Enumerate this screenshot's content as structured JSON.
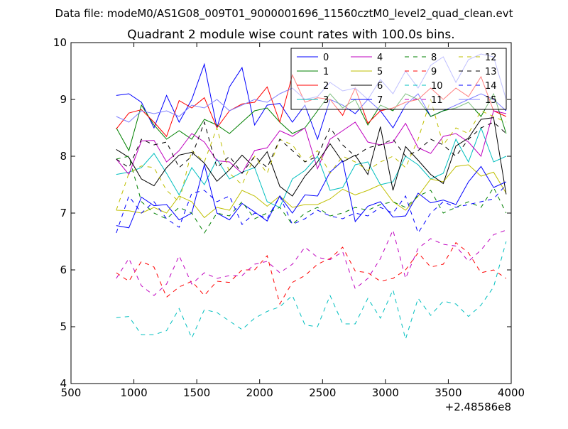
{
  "suptitle": "Data file: modeM0/AS1G08_009T01_9000001696_11560cztM0_level2_quad_clean.evt",
  "chart_data": {
    "type": "line",
    "title": "Quadrant 2 module wise count rates with 100.0s bins.",
    "xlabel": "",
    "ylabel": "",
    "xlim": [
      500,
      4000
    ],
    "ylim": [
      4,
      10
    ],
    "x_offset_label": "+2.48586e8",
    "x_ticks": [
      500,
      1000,
      1500,
      2000,
      2500,
      3000,
      3500,
      4000
    ],
    "y_ticks": [
      4,
      5,
      6,
      7,
      8,
      9,
      10
    ],
    "grid": false,
    "legend_position": "top-right",
    "x": [
      860,
      960,
      1060,
      1160,
      1260,
      1360,
      1460,
      1560,
      1660,
      1760,
      1860,
      1960,
      2060,
      2160,
      2260,
      2360,
      2460,
      2560,
      2660,
      2760,
      2860,
      2960,
      3060,
      3160,
      3260,
      3360,
      3460,
      3560,
      3660,
      3760,
      3860,
      3960
    ],
    "series": [
      {
        "name": "0",
        "color": "#0000ff",
        "dash": "solid",
        "values": [
          9.07,
          9.1,
          8.95,
          8.5,
          9.07,
          8.6,
          9.0,
          9.62,
          8.5,
          9.22,
          9.56,
          8.55,
          8.9,
          8.93,
          8.6,
          8.9,
          8.3,
          9.0,
          8.9,
          8.75,
          9.0,
          8.8,
          8.5,
          8.9,
          9.1,
          8.7,
          8.8,
          8.9,
          9.0,
          9.1,
          9.0,
          8.8
        ]
      },
      {
        "name": "1",
        "color": "#008000",
        "dash": "solid",
        "values": [
          8.5,
          8.1,
          8.9,
          8.55,
          8.3,
          8.45,
          8.3,
          8.65,
          8.55,
          8.4,
          8.6,
          8.8,
          8.85,
          8.6,
          8.4,
          8.5,
          8.8,
          9.1,
          8.85,
          9.0,
          8.55,
          8.9,
          8.8,
          9.1,
          9.0,
          8.7,
          8.8,
          8.85,
          8.95,
          8.7,
          9.1,
          8.4
        ]
      },
      {
        "name": "2",
        "color": "#ff0000",
        "dash": "solid",
        "values": [
          8.48,
          8.76,
          8.82,
          8.6,
          8.35,
          8.98,
          8.85,
          9.03,
          8.5,
          8.8,
          8.92,
          8.95,
          9.22,
          8.6,
          9.43,
          8.95,
          9.03,
          9.0,
          8.72,
          9.2,
          8.58,
          8.8,
          8.85,
          8.95,
          9.0,
          9.2,
          9.0,
          9.2,
          9.05,
          9.4,
          8.8,
          8.7
        ]
      },
      {
        "name": "3",
        "color": "#00bfbf",
        "dash": "solid",
        "values": [
          7.68,
          7.72,
          7.8,
          8.05,
          7.7,
          7.32,
          7.8,
          7.5,
          7.95,
          7.6,
          7.72,
          7.8,
          7.2,
          7.1,
          7.6,
          7.75,
          8.0,
          7.4,
          7.45,
          7.85,
          7.9,
          7.5,
          7.55,
          8.0,
          7.85,
          7.6,
          7.7,
          8.3,
          7.9,
          8.5,
          7.9,
          8.0
        ]
      },
      {
        "name": "4",
        "color": "#bf00bf",
        "dash": "solid",
        "values": [
          7.95,
          7.68,
          8.27,
          8.28,
          7.9,
          8.1,
          8.4,
          8.25,
          7.92,
          7.9,
          7.7,
          8.1,
          8.15,
          8.45,
          8.35,
          8.5,
          7.78,
          8.3,
          8.45,
          8.6,
          8.25,
          8.2,
          8.25,
          8.58,
          8.15,
          8.05,
          8.35,
          8.4,
          8.25,
          8.0,
          8.8,
          8.75
        ]
      },
      {
        "name": "5",
        "color": "#bfbf00",
        "dash": "solid",
        "values": [
          7.05,
          7.04,
          7.0,
          7.1,
          7.0,
          7.3,
          7.2,
          6.92,
          7.1,
          7.05,
          7.4,
          7.3,
          7.12,
          7.3,
          7.1,
          7.15,
          7.15,
          7.25,
          7.42,
          7.32,
          7.4,
          7.5,
          7.2,
          7.05,
          7.3,
          7.6,
          7.55,
          7.82,
          7.85,
          7.65,
          7.72,
          7.35
        ]
      },
      {
        "name": "6",
        "color": "#000000",
        "dash": "solid",
        "values": [
          8.12,
          7.98,
          7.6,
          7.48,
          7.8,
          8.02,
          8.07,
          7.88,
          7.56,
          7.76,
          8.02,
          7.8,
          8.08,
          7.47,
          7.3,
          7.65,
          7.9,
          8.22,
          7.9,
          8.02,
          7.68,
          8.52,
          7.4,
          8.17,
          7.93,
          7.68,
          7.52,
          8.18,
          8.32,
          8.65,
          8.68,
          7.33
        ]
      },
      {
        "name": "7",
        "color": "#0000ff",
        "dash": "solid",
        "values": [
          6.78,
          6.74,
          7.28,
          7.13,
          7.15,
          6.88,
          7.0,
          7.85,
          7.0,
          6.88,
          7.17,
          7.02,
          6.86,
          7.3,
          7.0,
          7.32,
          7.3,
          7.72,
          7.92,
          6.85,
          7.12,
          7.2,
          6.93,
          6.95,
          7.35,
          7.18,
          7.23,
          7.15,
          7.55,
          7.82,
          7.45,
          7.55
        ]
      },
      {
        "name": "8",
        "color": "#008000",
        "dash": "dashed",
        "values": [
          7.95,
          8.0,
          7.2,
          7.0,
          6.9,
          7.1,
          7.0,
          6.65,
          7.0,
          6.95,
          7.2,
          6.9,
          7.0,
          7.1,
          6.8,
          7.0,
          7.1,
          6.95,
          7.0,
          7.1,
          7.05,
          7.15,
          7.2,
          7.1,
          7.3,
          7.4,
          7.0,
          7.1,
          7.2,
          7.1,
          7.45,
          7.0
        ]
      },
      {
        "name": "9",
        "color": "#ff0000",
        "dash": "dashed",
        "values": [
          5.95,
          5.8,
          6.15,
          6.05,
          5.52,
          5.7,
          5.8,
          5.55,
          5.8,
          5.78,
          6.0,
          6.0,
          6.25,
          5.4,
          5.78,
          5.9,
          6.1,
          6.2,
          6.4,
          5.98,
          5.95,
          5.8,
          5.85,
          6.0,
          6.3,
          6.05,
          6.1,
          6.48,
          6.3,
          5.95,
          6.0,
          5.85
        ]
      },
      {
        "name": "10",
        "color": "#00bfbf",
        "dash": "dashed",
        "values": [
          5.16,
          5.18,
          4.86,
          4.86,
          4.93,
          5.32,
          4.8,
          5.3,
          5.25,
          5.1,
          4.95,
          5.15,
          5.27,
          5.35,
          5.55,
          5.03,
          5.0,
          5.55,
          5.05,
          5.05,
          5.5,
          5.15,
          5.65,
          4.78,
          5.5,
          5.2,
          5.45,
          5.4,
          5.18,
          5.38,
          5.7,
          6.5
        ]
      },
      {
        "name": "11",
        "color": "#bf00bf",
        "dash": "dashed",
        "values": [
          5.85,
          6.2,
          5.72,
          5.55,
          5.75,
          6.25,
          5.75,
          5.95,
          5.85,
          5.9,
          5.9,
          6.1,
          6.15,
          5.95,
          6.1,
          6.4,
          6.22,
          6.18,
          6.32,
          5.67,
          5.85,
          6.2,
          6.7,
          5.85,
          6.38,
          6.55,
          6.45,
          6.42,
          6.15,
          6.35,
          6.62,
          6.7
        ]
      },
      {
        "name": "12",
        "color": "#bfbf00",
        "dash": "dashed",
        "values": [
          7.05,
          7.7,
          7.83,
          7.8,
          7.4,
          7.2,
          8.1,
          7.9,
          8.5,
          7.7,
          7.5,
          8.0,
          7.7,
          8.3,
          8.2,
          7.9,
          8.1,
          7.7,
          8.0,
          7.9,
          7.75,
          7.9,
          8.0,
          7.8,
          8.3,
          9.0,
          8.2,
          8.5,
          8.4,
          8.8,
          8.7,
          8.6
        ]
      },
      {
        "name": "13",
        "color": "#000000",
        "dash": "dashed",
        "values": [
          7.95,
          7.8,
          8.3,
          8.2,
          8.25,
          7.8,
          8.0,
          8.6,
          7.8,
          8.0,
          7.7,
          8.0,
          7.8,
          8.3,
          8.1,
          7.9,
          8.0,
          8.5,
          8.2,
          8.0,
          8.15,
          8.2,
          8.3,
          8.0,
          8.1,
          8.3,
          8.2,
          8.0,
          8.3,
          8.5,
          8.6,
          8.4
        ]
      },
      {
        "name": "14",
        "color": "#0000ff",
        "dash": "dashed",
        "values": [
          6.65,
          7.3,
          7.0,
          7.2,
          6.9,
          6.75,
          7.35,
          7.4,
          7.2,
          7.3,
          6.8,
          7.0,
          6.9,
          7.3,
          6.8,
          6.9,
          7.05,
          6.95,
          6.9,
          7.0,
          6.95,
          7.1,
          7.0,
          7.3,
          6.65,
          7.0,
          7.2,
          7.1,
          7.15,
          7.2,
          7.25,
          7.5
        ]
      },
      {
        "name": "15",
        "color": "#8080ff",
        "dash": "solid",
        "values": [
          8.7,
          8.6,
          8.8,
          8.75,
          8.8,
          8.7,
          8.9,
          8.85,
          9.0,
          8.8,
          8.9,
          9.0,
          8.95,
          9.1,
          9.2,
          9.0,
          9.05,
          9.3,
          9.15,
          9.2,
          9.0,
          9.35,
          9.1,
          9.5,
          9.2,
          9.6,
          9.75,
          9.3,
          9.7,
          9.8,
          9.75,
          9.0
        ]
      }
    ]
  }
}
